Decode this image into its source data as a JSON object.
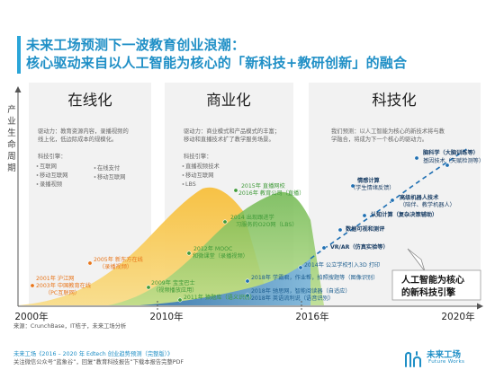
{
  "title": {
    "line1": "未来工场预测下一波教育创业浪潮：",
    "line2": "核心驱动来自以人工智能为核心的「新科技+教研创新」的融合"
  },
  "y_axis_label": "产业生命周期",
  "phases": [
    {
      "title": "在线化",
      "driver": "驱动力：教育资源内容，录播视频的",
      "driver2": "线上化，低边际成本的规模化。",
      "tech_label": "科技引擎：",
      "tech_col1": [
        "互联网",
        "移动互联网",
        "录播视频"
      ],
      "tech_col2": [
        "在线支付",
        "移动互联网"
      ]
    },
    {
      "title": "商业化",
      "driver": "驱动力：商业模式和产品模式的丰富；",
      "driver2": "移动和直播技术扩了教学服务场景。",
      "tech_label": "科技引擎：",
      "tech_col1": [
        "直播视频技术",
        "移动互联网",
        "LBS"
      ],
      "tech_col2": []
    },
    {
      "title": "科技化",
      "driver": "我们预测：以人工智能为核心的新技术将与教",
      "driver2": "学融合，将成为下一个核心的驱动力。",
      "tech_label": "",
      "tech_col1": [],
      "tech_col2": []
    }
  ],
  "x_labels": [
    "2000年",
    "2010年",
    "2016年",
    "2020年"
  ],
  "chart_data": {
    "type": "area",
    "title": "未来工场预测下一波教育创业浪潮",
    "ylabel": "产业生命周期",
    "x_ticks": [
      2000,
      2010,
      2016,
      2020
    ],
    "phases": [
      "在线化",
      "商业化",
      "科技化"
    ],
    "series": [
      {
        "name": "在线化",
        "color": "#f5b841"
      },
      {
        "name": "商业化",
        "color": "#8cc463"
      },
      {
        "name": "科技化",
        "color": "#2c84c6"
      }
    ],
    "annotations": [
      {
        "text": "2001年 沪江网",
        "group": "在线化"
      },
      {
        "text": "2003年 中国教育在线",
        "group": "在线化"
      },
      {
        "text": "（PC互联网）",
        "group": "在线化"
      },
      {
        "text": "2005年 新东方在线",
        "group": "在线化"
      },
      {
        "text": "（录播视频）",
        "group": "在线化"
      },
      {
        "text": "2009年 宝宝巴士",
        "group": "商业化"
      },
      {
        "text": "（视频播放应用）",
        "group": "商业化"
      },
      {
        "text": "2011年 猿题库（语义识别）",
        "group": "商业化"
      },
      {
        "text": "2012年 MOOC",
        "group": "商业化"
      },
      {
        "text": "和微课堂（录播视频）",
        "group": "商业化"
      },
      {
        "text": "2014 出现跟进学",
        "group": "商业化"
      },
      {
        "text": "习服务的O2O网（LBS）",
        "group": "商业化"
      },
      {
        "text": "2015年 直播网校",
        "group": "商业化"
      },
      {
        "text": "2016年 教育公司（直播）",
        "group": "商业化"
      },
      {
        "text": "2014年 公立学校引入3D 打印",
        "group": "科技化"
      },
      {
        "text": "2018年 学霸君，作业帮，拍照搜题等（图像识别）",
        "group": "科技化"
      },
      {
        "text": "2018年 驰思网，智能阅读器（自适应）",
        "group": "科技化"
      },
      {
        "text": "2018年 英语流利说（语音识别）",
        "group": "科技化"
      }
    ],
    "forecast": [
      {
        "text": "VR/AR（仿真实验等）"
      },
      {
        "text": "数据可视和测评"
      },
      {
        "text": "认知计算（复杂决策辅助）"
      },
      {
        "text": "高级机器人技术"
      },
      {
        "text": "（陪伴、教学机器人）"
      },
      {
        "text": "情感计算"
      },
      {
        "text": "（学生情绪反馈）"
      },
      {
        "text": "脑科学（大脑训练等）"
      },
      {
        "text": "基因技术（天赋检测等）"
      }
    ],
    "callout": {
      "line1": "人工智能为核心",
      "line2": "的新科技引擎"
    }
  },
  "source": "来源：CrunchBase，IT桔子，未来工场分析",
  "footer1": "未来工场《2016 – 2020 年 Edtech 创业趋势预测（完整版）》",
  "footer2": "关注微信公众号“蓝象谷”，回复“教育科技报告”下载本报告完整PDF",
  "brand": {
    "name": "未来工场",
    "sub": "Future Works"
  },
  "colors": {
    "title": "#1f8fc6",
    "orange": "#e8751a",
    "green": "#3f9a38",
    "blue": "#1f6fb2",
    "dark_blue": "#1b5c8e"
  }
}
